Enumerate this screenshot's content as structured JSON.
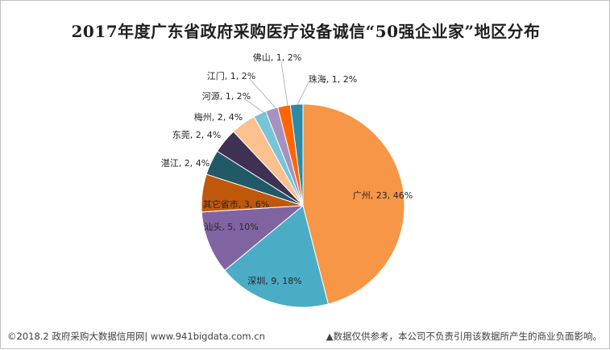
{
  "chart_data": {
    "type": "pie",
    "title": "2017年度广东省政府采购医疗设备诚信“50强企业家”地区分布",
    "start_angle_deg": 0,
    "direction": "clockwise",
    "slices": [
      {
        "name": "广州",
        "value": 23,
        "percent": "46%",
        "label": "广州, 23, 46%",
        "color": "#f79646"
      },
      {
        "name": "深圳",
        "value": 9,
        "percent": "18%",
        "label": "深圳, 9, 18%",
        "color": "#4bacc6"
      },
      {
        "name": "汕头",
        "value": 5,
        "percent": "10%",
        "label": "汕头, 5, 10%",
        "color": "#8064a2"
      },
      {
        "name": "其它省市",
        "value": 3,
        "percent": "6%",
        "label": "其它省市, 3, 6%",
        "color": "#c0580c"
      },
      {
        "name": "湛江",
        "value": 2,
        "percent": "4%",
        "label": "湛江, 2, 4%",
        "color": "#215968"
      },
      {
        "name": "东莞",
        "value": 2,
        "percent": "4%",
        "label": "东莞, 2, 4%",
        "color": "#3f3151"
      },
      {
        "name": "梅州",
        "value": 2,
        "percent": "4%",
        "label": "梅州, 2, 4%",
        "color": "#fac08f"
      },
      {
        "name": "河源",
        "value": 1,
        "percent": "2%",
        "label": "河源, 1, 2%",
        "color": "#78c4d8"
      },
      {
        "name": "江门",
        "value": 1,
        "percent": "2%",
        "label": "江门, 1, 2%",
        "color": "#a493c0"
      },
      {
        "name": "佛山",
        "value": 1,
        "percent": "2%",
        "label": "佛山, 1, 2%",
        "color": "#ff6600"
      },
      {
        "name": "珠海",
        "value": 1,
        "percent": "2%",
        "label": "珠海, 1, 2%",
        "color": "#2c8aa6"
      }
    ]
  },
  "footer": {
    "left": "©2018.2 政府采购大数据信用网| www.941bigdata.com.cn",
    "right": "▲数据仅供参考，本公司不负责引用该数据所产生的商业负面影响。"
  }
}
